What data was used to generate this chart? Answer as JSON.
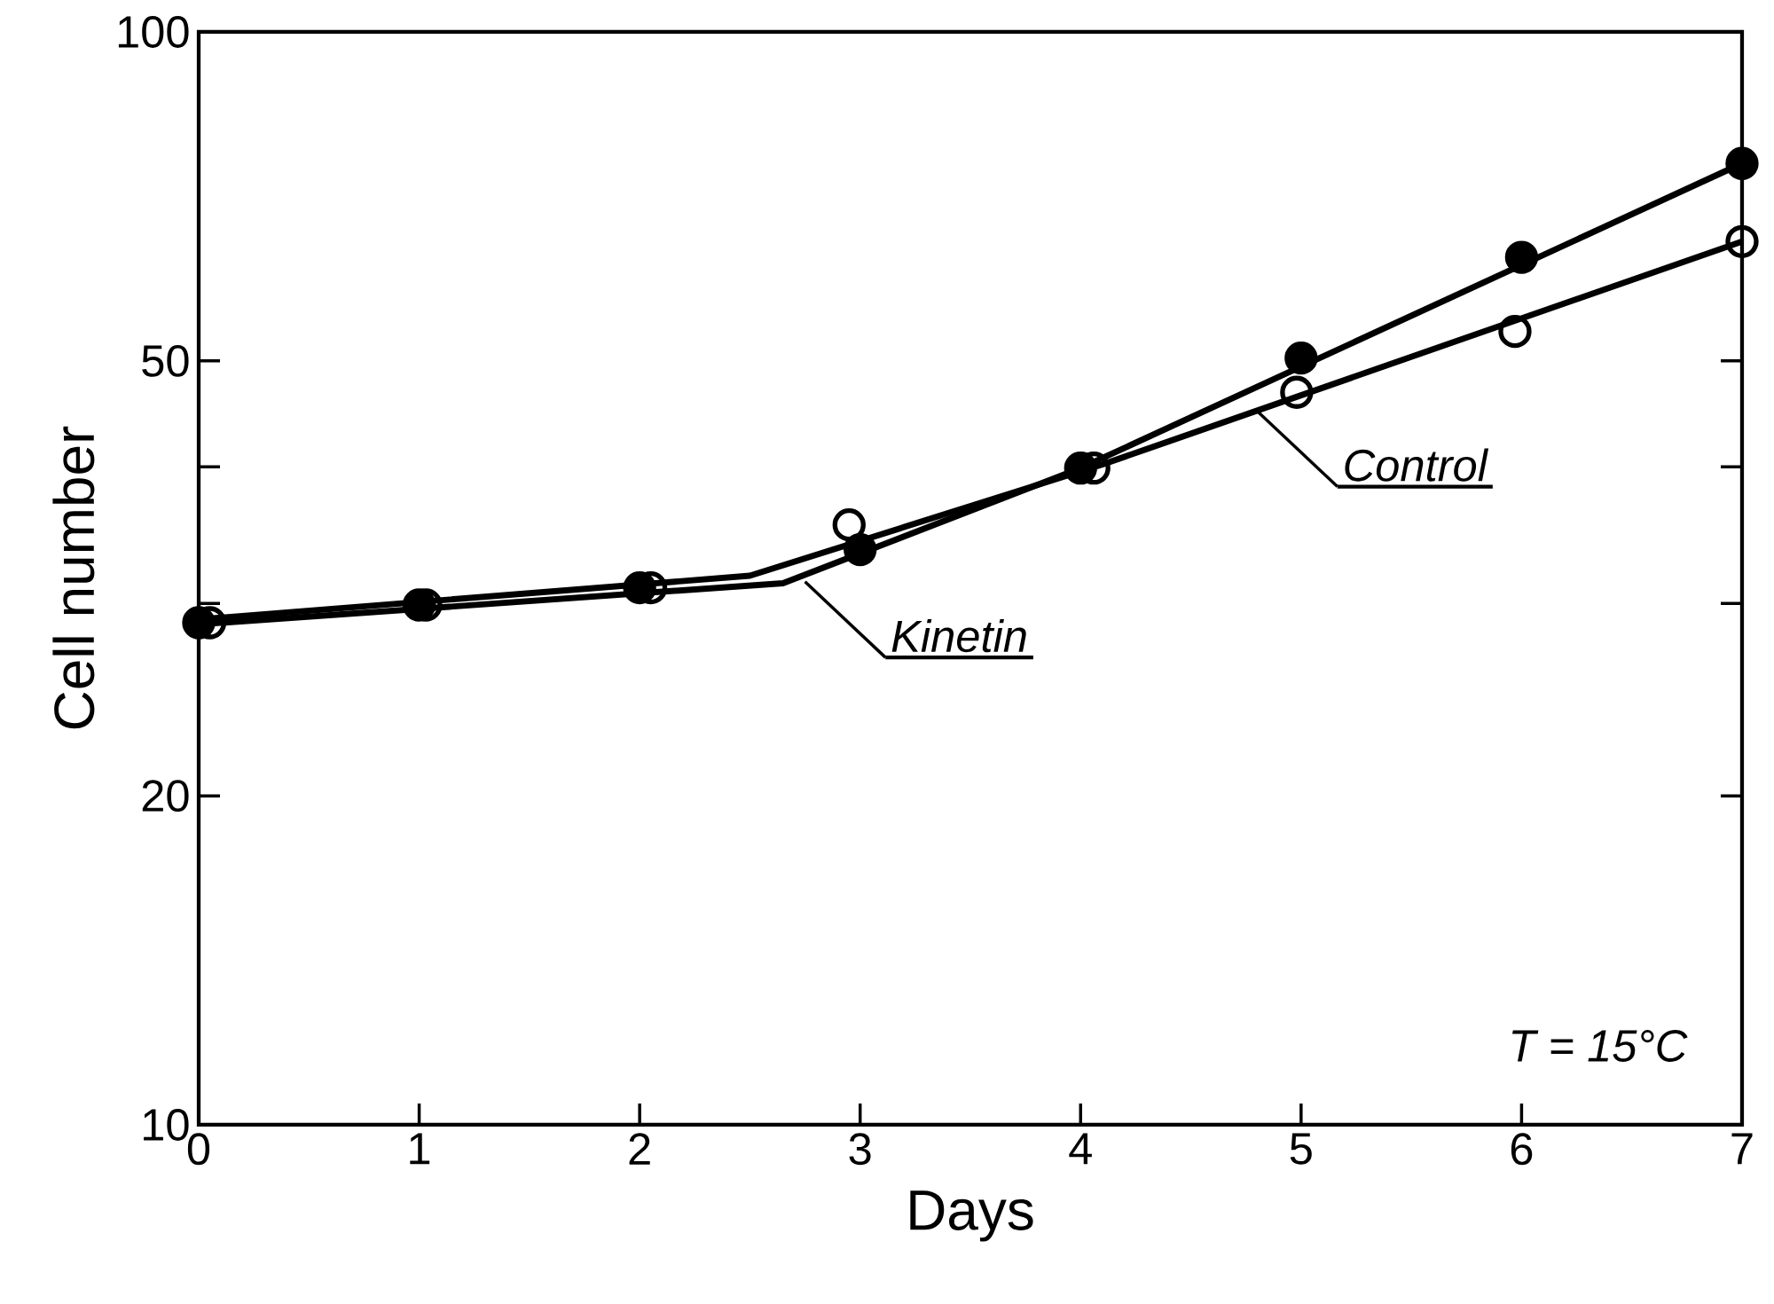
{
  "chart_data": {
    "type": "scatter",
    "xlabel": "Days",
    "ylabel": "Cell number",
    "log": "y",
    "marker": "circle",
    "xlim": [
      0,
      7
    ],
    "xticks": [
      0,
      1,
      2,
      3,
      4,
      5,
      6,
      7
    ],
    "ylim": [
      10,
      100
    ],
    "yticks": [
      10,
      20,
      {
        "value": 30,
        "label": null
      },
      {
        "value": 40,
        "label": null
      },
      50,
      100
    ],
    "series": [
      {
        "type": "line",
        "marker": "none",
        "color": "#000000",
        "x": [
          0,
          2.65,
          4,
          7
        ],
        "values": [
          28.7,
          31.3,
          39.9,
          75.8
        ]
      },
      {
        "type": "line",
        "marker": "none",
        "color": "#000000",
        "x": [
          0,
          2.5,
          4.1,
          7
        ],
        "values": [
          29.0,
          31.8,
          40.2,
          64.3
        ]
      },
      {
        "color": "#000000",
        "x": [
          0,
          1,
          2,
          3,
          4,
          5,
          6,
          7
        ],
        "values": [
          28.8,
          29.9,
          31.0,
          33.6,
          39.9,
          50.3,
          62.2,
          75.8
        ]
      },
      {
        "color": "#000000",
        "marker": "open circle",
        "x": [
          0.05,
          1.03,
          2.05,
          2.95,
          4.06,
          4.98,
          5.97,
          7
        ],
        "values": [
          28.8,
          29.9,
          31.0,
          35.4,
          39.9,
          46.8,
          53.2,
          64.3
        ]
      }
    ],
    "annotations": [
      {
        "text": "Kinetin",
        "x": 2.75,
        "y": 31.4
      },
      {
        "text": "Control",
        "x": 4.8,
        "y": 45.0
      },
      "T = 15°C"
    ]
  }
}
